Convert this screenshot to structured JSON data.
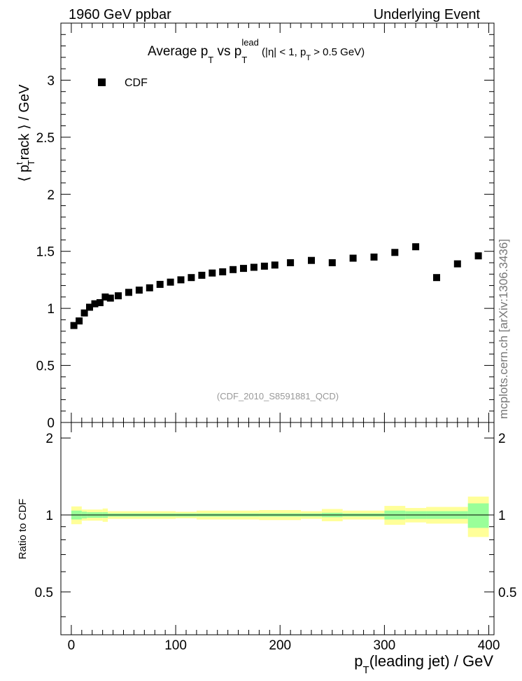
{
  "header": {
    "left": "1960 GeV ppbar",
    "right": "Underlying Event"
  },
  "side_label": "mcplots.cern.ch [arXiv:1306.3436]",
  "chart_data": [
    {
      "type": "scatter",
      "title": {
        "main": "Average p",
        "sub1": "T",
        "vs": " vs p",
        "sub2": "T",
        "sup2": "lead",
        "cut": " (|η| < 1, p",
        "sub3": "T",
        "cut_end": " > 0.5 GeV)"
      },
      "ylabel": {
        "pre": "⟨ p",
        "sup": "t",
        "sub": "T",
        "post": "rack ⟩ / GeV"
      },
      "xlim": [
        -10,
        405
      ],
      "ylim": [
        0,
        3.5
      ],
      "yticks": [
        0,
        0.5,
        1,
        1.5,
        2,
        2.5,
        3
      ],
      "ytick_labels": [
        "0",
        "0.5",
        "1",
        "1.5",
        "2",
        "2.5",
        "3"
      ],
      "legend": {
        "label": "CDF",
        "position": "top-left"
      },
      "watermark": "(CDF_2010_S8591881_QCD)",
      "series": [
        {
          "name": "CDF",
          "marker": "square",
          "color": "#000000",
          "x": [
            2.5,
            7.5,
            12.5,
            17.5,
            22.5,
            27.5,
            32.5,
            37.5,
            45,
            55,
            65,
            75,
            85,
            95,
            105,
            115,
            125,
            135,
            145,
            155,
            165,
            175,
            185,
            195,
            210,
            230,
            250,
            270,
            290,
            310,
            330,
            350,
            370,
            390
          ],
          "y": [
            0.85,
            0.89,
            0.96,
            1.01,
            1.04,
            1.05,
            1.1,
            1.09,
            1.11,
            1.14,
            1.16,
            1.18,
            1.21,
            1.23,
            1.25,
            1.27,
            1.29,
            1.31,
            1.32,
            1.34,
            1.35,
            1.36,
            1.37,
            1.38,
            1.4,
            1.42,
            1.4,
            1.44,
            1.45,
            1.49,
            1.54,
            1.27,
            1.39,
            1.46
          ]
        }
      ]
    },
    {
      "type": "area",
      "ylabel": "Ratio to CDF",
      "xlabel": {
        "pre": "p",
        "sub": "T",
        "post": "(leading jet) / GeV"
      },
      "xlim": [
        -10,
        405
      ],
      "ylim": [
        0.34,
        2.3
      ],
      "xticks": [
        0,
        100,
        200,
        300,
        400
      ],
      "xtick_labels": [
        "0",
        "100",
        "200",
        "300",
        "400"
      ],
      "yticks": [
        0.5,
        1,
        2
      ],
      "ytick_labels": [
        "0.5",
        "1",
        "2"
      ],
      "reference": 1,
      "bins": [
        {
          "lo": 0,
          "hi": 10,
          "stat": 0.04,
          "tot": 0.08
        },
        {
          "lo": 10,
          "hi": 15,
          "stat": 0.03,
          "tot": 0.05
        },
        {
          "lo": 15,
          "hi": 30,
          "stat": 0.025,
          "tot": 0.05
        },
        {
          "lo": 30,
          "hi": 35,
          "stat": 0.025,
          "tot": 0.06
        },
        {
          "lo": 35,
          "hi": 100,
          "stat": 0.015,
          "tot": 0.035
        },
        {
          "lo": 100,
          "hi": 120,
          "stat": 0.015,
          "tot": 0.03
        },
        {
          "lo": 120,
          "hi": 180,
          "stat": 0.015,
          "tot": 0.04
        },
        {
          "lo": 180,
          "hi": 220,
          "stat": 0.015,
          "tot": 0.045
        },
        {
          "lo": 220,
          "hi": 240,
          "stat": 0.015,
          "tot": 0.035
        },
        {
          "lo": 240,
          "hi": 260,
          "stat": 0.02,
          "tot": 0.055
        },
        {
          "lo": 260,
          "hi": 300,
          "stat": 0.015,
          "tot": 0.04
        },
        {
          "lo": 300,
          "hi": 320,
          "stat": 0.04,
          "tot": 0.085
        },
        {
          "lo": 320,
          "hi": 340,
          "stat": 0.035,
          "tot": 0.065
        },
        {
          "lo": 340,
          "hi": 380,
          "stat": 0.035,
          "tot": 0.075
        },
        {
          "lo": 380,
          "hi": 400,
          "stat": 0.11,
          "tot": 0.18
        }
      ],
      "band_colors": {
        "stat": "#99ff99",
        "total": "#ffff99"
      }
    }
  ]
}
